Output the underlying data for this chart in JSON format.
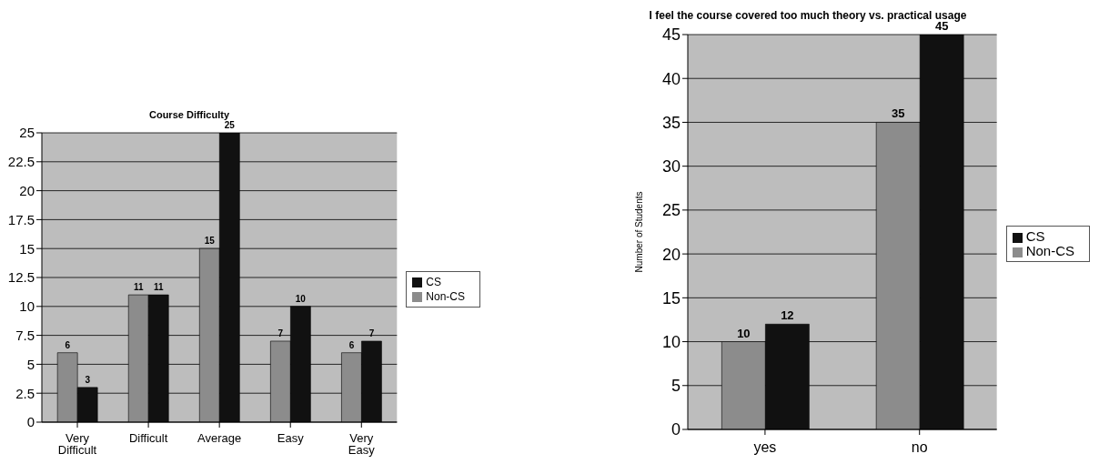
{
  "chart_data": [
    {
      "type": "bar",
      "title": "Course Difficulty",
      "categories": [
        "Very Difficult",
        "Difficult",
        "Average",
        "Easy",
        "Very Easy"
      ],
      "series": [
        {
          "name": "Non-CS",
          "color": "#8c8c8c",
          "values": [
            6,
            11,
            15,
            7,
            6
          ]
        },
        {
          "name": "CS",
          "color": "#111111",
          "values": [
            3,
            11,
            25,
            10,
            7
          ]
        }
      ],
      "ylim": [
        0,
        25
      ],
      "yticks": [
        0,
        2.5,
        5,
        7.5,
        10,
        12.5,
        15,
        17.5,
        20,
        22.5,
        25
      ],
      "grid": "y",
      "legend": "right",
      "data_labels": true
    },
    {
      "type": "bar",
      "title": "I feel the course covered too much theory vs. practical usage",
      "ylabel": "Number of Students",
      "categories": [
        "yes",
        "no"
      ],
      "series": [
        {
          "name": "Non-CS",
          "color": "#8c8c8c",
          "values": [
            10,
            35
          ]
        },
        {
          "name": "CS",
          "color": "#111111",
          "values": [
            12,
            45
          ]
        }
      ],
      "ylim": [
        0,
        45
      ],
      "yticks": [
        0,
        5,
        10,
        15,
        20,
        25,
        30,
        35,
        40,
        45
      ],
      "grid": "y",
      "legend": "right",
      "data_labels": true
    }
  ]
}
